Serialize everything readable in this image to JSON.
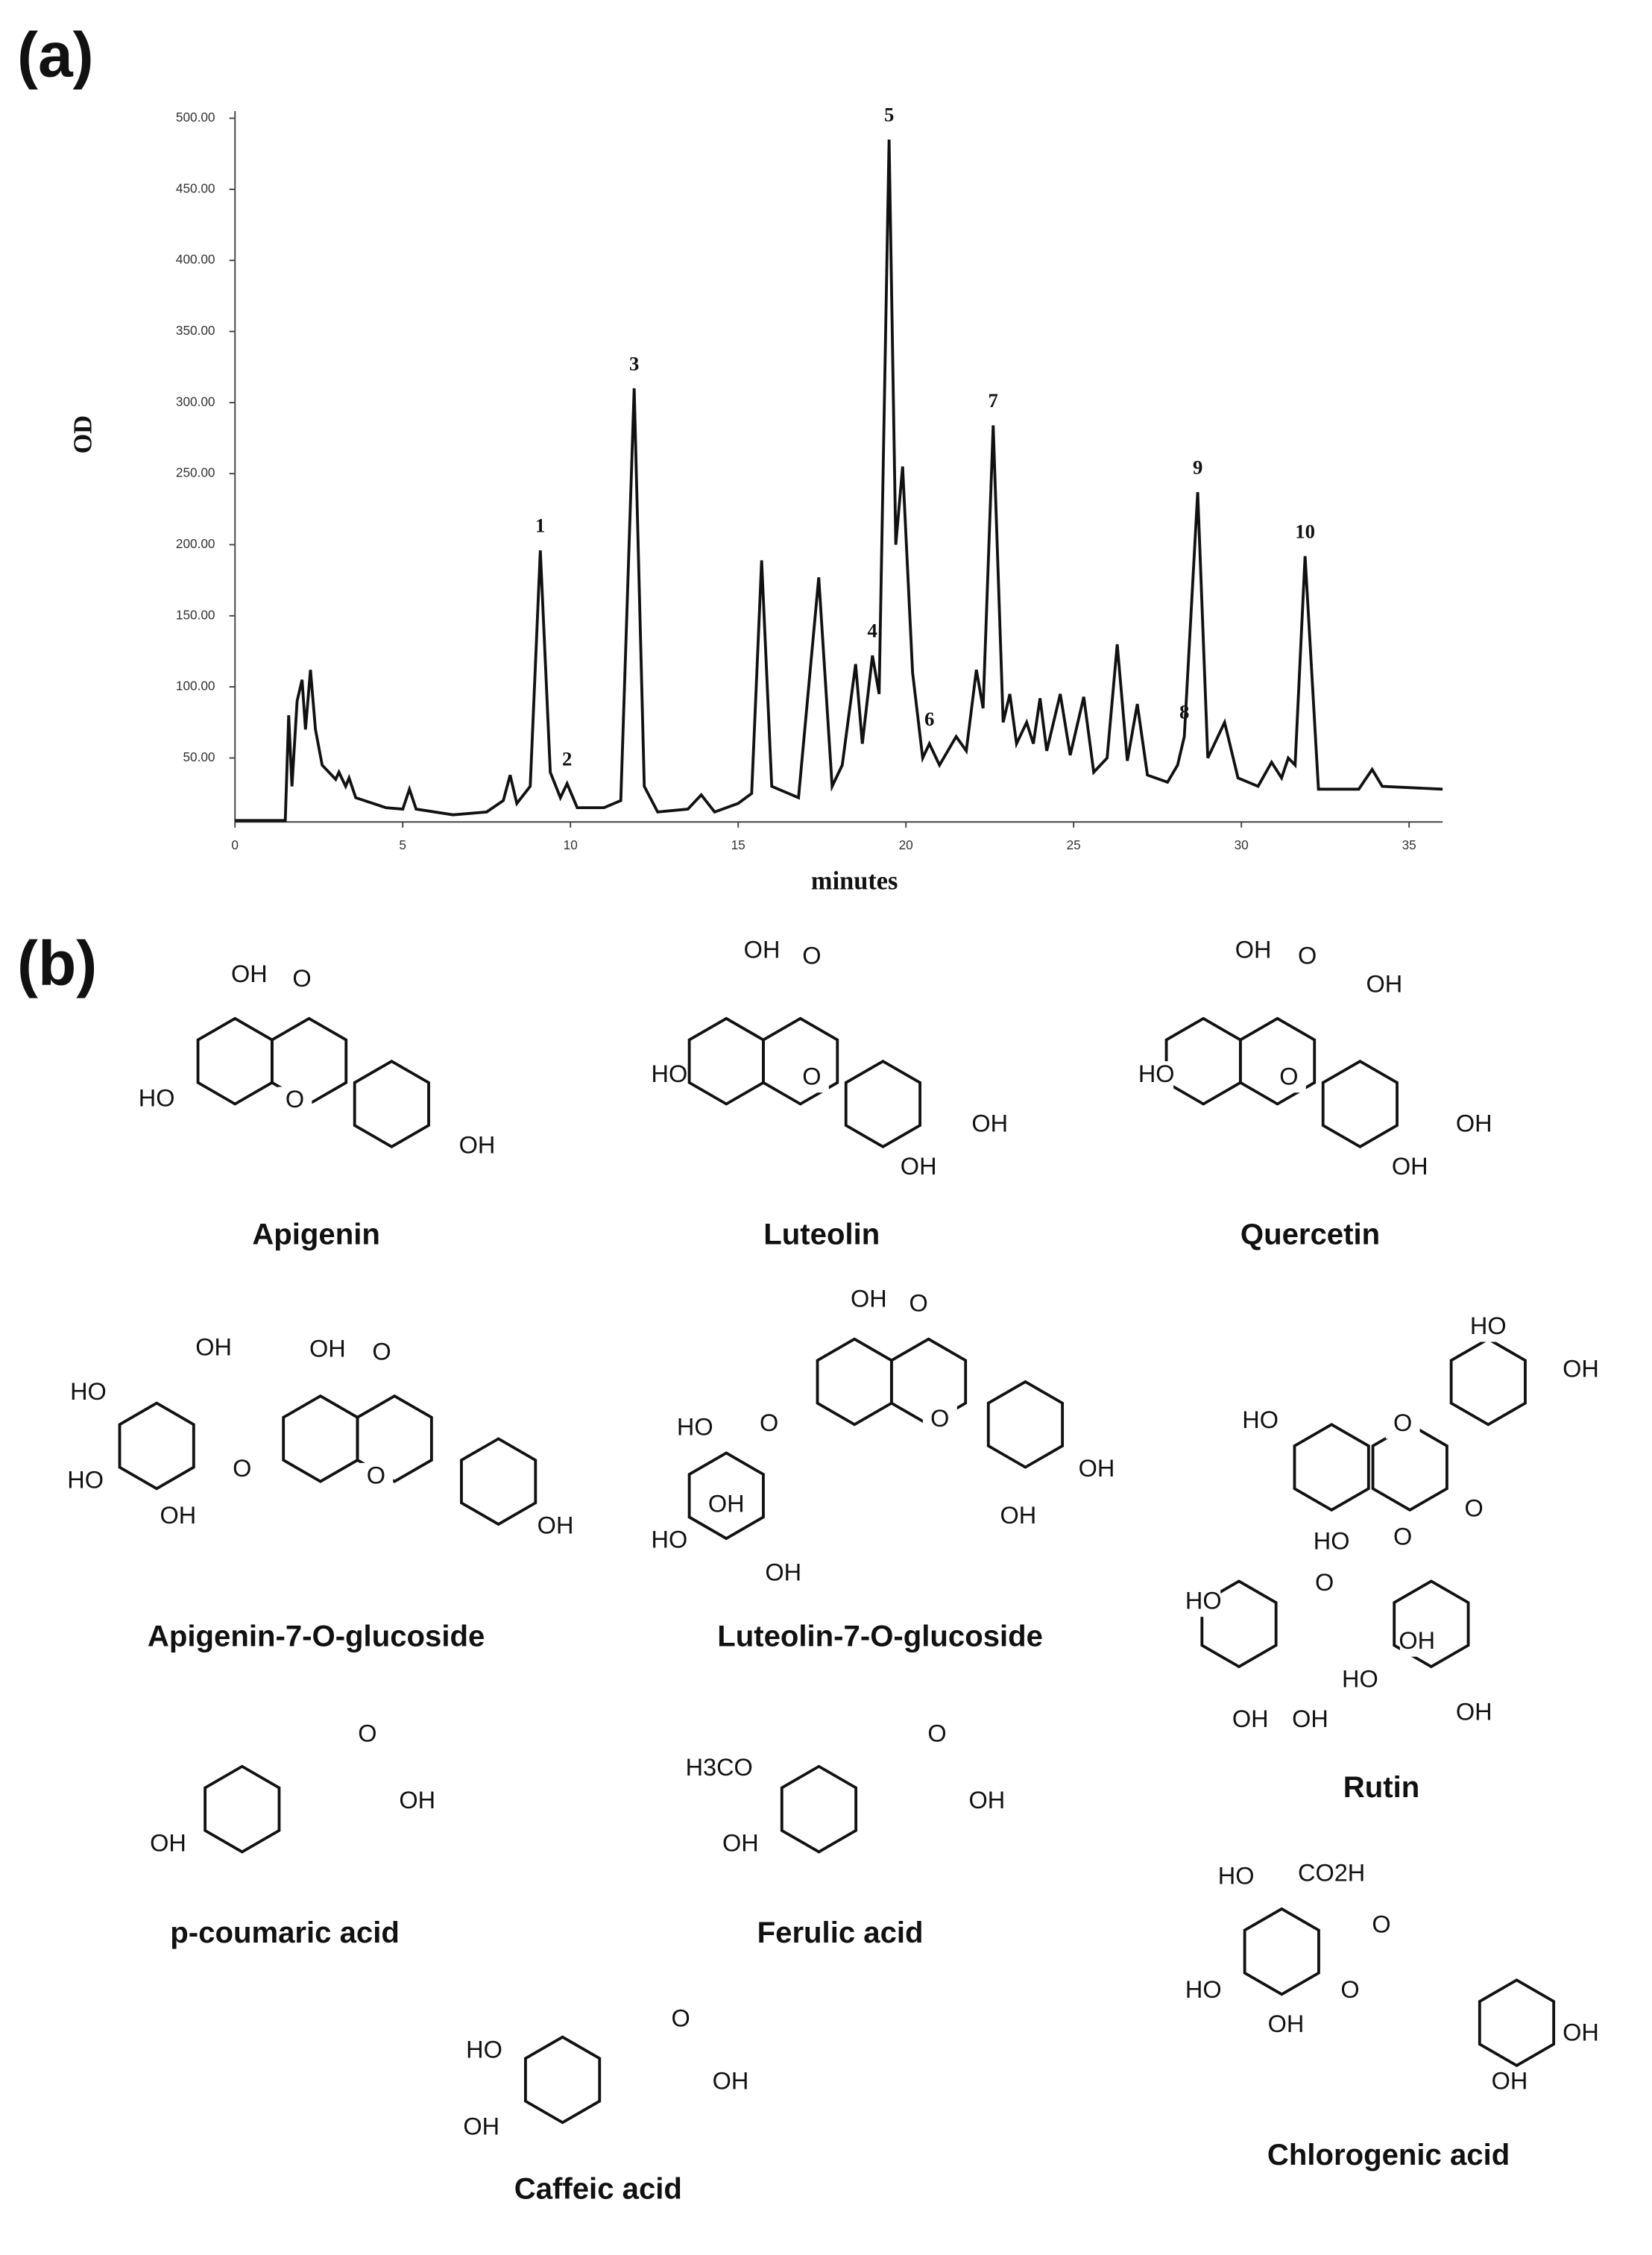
{
  "figure_labels": {
    "a": "(a)",
    "b": "(b)"
  },
  "chart_data": {
    "type": "line",
    "x_label": "minutes",
    "y_label": "OD",
    "color": "#111111",
    "xlim": [
      0,
      36
    ],
    "xticks": [
      0,
      5,
      10,
      15,
      20,
      25,
      30,
      35
    ],
    "ylim": [
      5,
      505
    ],
    "yticks": [
      {
        "value": 50,
        "label": "50.00"
      },
      {
        "value": 100,
        "label": "100.00"
      },
      {
        "value": 150,
        "label": "150.00"
      },
      {
        "value": 200,
        "label": "200.00"
      },
      {
        "value": 250,
        "label": "250.00"
      },
      {
        "value": 300,
        "label": "300.00"
      },
      {
        "value": 350,
        "label": "350.00"
      },
      {
        "value": 400,
        "label": "400.00"
      },
      {
        "value": 450,
        "label": "450.00"
      },
      {
        "value": 500,
        "label": "500.00"
      }
    ],
    "x": [
      0,
      1.5,
      1.6,
      1.7,
      1.85,
      2.0,
      2.1,
      2.25,
      2.4,
      2.6,
      3.0,
      3.1,
      3.3,
      3.4,
      3.6,
      4.5,
      5.0,
      5.2,
      5.4,
      6.5,
      7.5,
      8.0,
      8.2,
      8.4,
      8.8,
      9.1,
      9.4,
      9.7,
      9.9,
      10.2,
      11.0,
      11.5,
      11.9,
      12.2,
      12.6,
      13.5,
      13.9,
      14.3,
      15.0,
      15.4,
      15.7,
      16.0,
      16.8,
      17.4,
      17.8,
      18.1,
      18.5,
      18.7,
      19.0,
      19.2,
      19.5,
      19.7,
      19.9,
      20.2,
      20.5,
      20.7,
      21.0,
      21.5,
      21.8,
      22.1,
      22.3,
      22.6,
      22.9,
      23.1,
      23.3,
      23.6,
      23.8,
      24.0,
      24.2,
      24.6,
      24.9,
      25.3,
      25.6,
      26.0,
      26.3,
      26.6,
      26.9,
      27.2,
      27.8,
      28.1,
      28.3,
      28.7,
      29.0,
      29.5,
      29.9,
      30.5,
      30.9,
      31.2,
      31.4,
      31.6,
      31.9,
      32.3,
      33.5,
      33.9,
      34.2,
      36
    ],
    "values": [
      6,
      6,
      80,
      30,
      90,
      105,
      70,
      112,
      70,
      45,
      35,
      40,
      30,
      36,
      22,
      15,
      14,
      28,
      14,
      10,
      12,
      20,
      38,
      18,
      30,
      196,
      40,
      22,
      32,
      15,
      15,
      20,
      310,
      30,
      12,
      14,
      24,
      12,
      18,
      25,
      189,
      30,
      22,
      177,
      30,
      45,
      116,
      60,
      122,
      95,
      485,
      200,
      255,
      110,
      50,
      60,
      45,
      65,
      55,
      112,
      85,
      284,
      75,
      95,
      60,
      75,
      60,
      92,
      55,
      95,
      52,
      93,
      40,
      50,
      130,
      48,
      88,
      38,
      33,
      45,
      65,
      237,
      50,
      75,
      36,
      30,
      47,
      36,
      50,
      45,
      192,
      28,
      28,
      42,
      30,
      28
    ],
    "peak_labels": [
      {
        "label": "1",
        "x": 9.1
      },
      {
        "label": "2",
        "x": 9.9
      },
      {
        "label": "3",
        "x": 11.9
      },
      {
        "label": "4",
        "x": 19.0
      },
      {
        "label": "5",
        "x": 19.5
      },
      {
        "label": "6",
        "x": 20.7
      },
      {
        "label": "7",
        "x": 22.6
      },
      {
        "label": "8",
        "x": 28.3
      },
      {
        "label": "9",
        "x": 28.7
      },
      {
        "label": "10",
        "x": 31.9
      }
    ]
  },
  "structures": [
    {
      "name": "Apigenin",
      "atoms": [
        "OH",
        "O",
        "HO",
        "O",
        "OH"
      ]
    },
    {
      "name": "Luteolin",
      "atoms": [
        "OH",
        "O",
        "HO",
        "O",
        "OH",
        "OH"
      ]
    },
    {
      "name": "Quercetin",
      "atoms": [
        "OH",
        "O",
        "OH",
        "HO",
        "O",
        "OH",
        "OH"
      ]
    },
    {
      "name": "Apigenin-7-O-glucoside",
      "atoms": [
        "OH",
        "HO",
        "HO",
        "OH",
        "O",
        "OH",
        "O",
        "O",
        "OH"
      ]
    },
    {
      "name": "Luteolin-7-O-glucoside",
      "atoms": [
        "OH",
        "O",
        "HO",
        "O",
        "OH",
        "HO",
        "OH",
        "O",
        "OH",
        "OH"
      ]
    },
    {
      "name": "Rutin",
      "atoms": [
        "HO",
        "OH",
        "HO",
        "O",
        "O",
        "HO",
        "O",
        "O",
        "HO",
        "OH",
        "HO",
        "OH",
        "OH",
        "OH"
      ]
    },
    {
      "name": "p-coumaric acid",
      "atoms": [
        "O",
        "OH",
        "OH"
      ]
    },
    {
      "name": "Ferulic acid",
      "atoms": [
        "H3CO",
        "O",
        "OH",
        "OH"
      ]
    },
    {
      "name": "Caffeic acid",
      "atoms": [
        "HO",
        "O",
        "OH",
        "OH"
      ]
    },
    {
      "name": "Chlorogenic acid",
      "atoms": [
        "HO",
        "CO2H",
        "O",
        "HO",
        "O",
        "OH",
        "OH",
        "OH"
      ]
    }
  ]
}
